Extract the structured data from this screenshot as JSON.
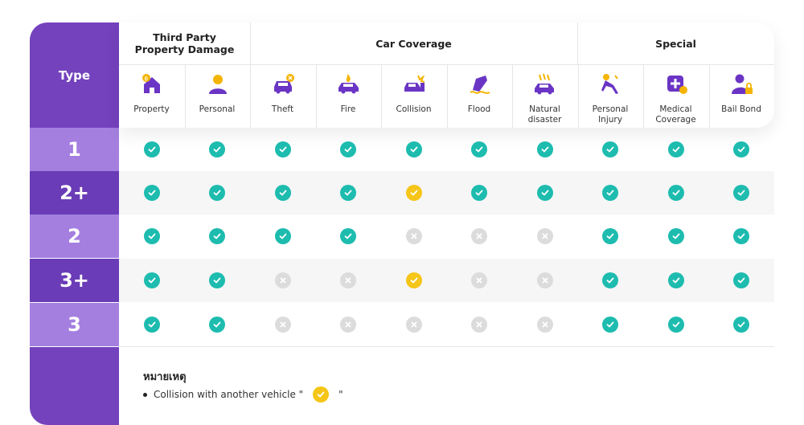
{
  "header": {
    "type_label": "Type",
    "groups": [
      {
        "title_line1": "Third Party",
        "title_line2": "Property Damage"
      },
      {
        "title_line1": "Car Coverage",
        "title_line2": ""
      },
      {
        "title_line1": "Special",
        "title_line2": ""
      }
    ],
    "columns": [
      {
        "label1": "Property",
        "label2": "",
        "icon": "house-coin-icon"
      },
      {
        "label1": "Personal",
        "label2": "",
        "icon": "person-icon"
      },
      {
        "label1": "Theft",
        "label2": "",
        "icon": "car-theft-icon"
      },
      {
        "label1": "Fire",
        "label2": "",
        "icon": "car-fire-icon"
      },
      {
        "label1": "Collision",
        "label2": "",
        "icon": "car-collision-icon"
      },
      {
        "label1": "Flood",
        "label2": "",
        "icon": "car-flood-icon"
      },
      {
        "label1": "Natural",
        "label2": "disaster",
        "icon": "car-natural-disaster-icon"
      },
      {
        "label1": "Personal",
        "label2": "Injury",
        "icon": "person-injury-icon"
      },
      {
        "label1": "Medical",
        "label2": "Coverage",
        "icon": "medical-cross-icon"
      },
      {
        "label1": "Bail Bond",
        "label2": "",
        "icon": "person-lock-icon"
      }
    ]
  },
  "rows": [
    {
      "type": "1",
      "marks": [
        "yes",
        "yes",
        "yes",
        "yes",
        "yes",
        "yes",
        "yes",
        "yes",
        "yes",
        "yes"
      ]
    },
    {
      "type": "2+",
      "marks": [
        "yes",
        "yes",
        "yes",
        "yes",
        "partial",
        "yes",
        "yes",
        "yes",
        "yes",
        "yes"
      ]
    },
    {
      "type": "2",
      "marks": [
        "yes",
        "yes",
        "yes",
        "yes",
        "no",
        "no",
        "no",
        "yes",
        "yes",
        "yes"
      ]
    },
    {
      "type": "3+",
      "marks": [
        "yes",
        "yes",
        "no",
        "no",
        "partial",
        "no",
        "no",
        "yes",
        "yes",
        "yes"
      ]
    },
    {
      "type": "3",
      "marks": [
        "yes",
        "yes",
        "no",
        "no",
        "no",
        "no",
        "no",
        "yes",
        "yes",
        "yes"
      ]
    }
  ],
  "legend": {
    "title": "หมายเหตุ",
    "text_before": "Collision with another vehicle \"",
    "text_after": "\"",
    "mark": "partial"
  },
  "colors": {
    "purple": "#7442bd",
    "purple_light": "#a47fe0",
    "teal_check": "#1dbcaf",
    "yellow_check": "#f5c518",
    "grey_cross": "#dcdcdc",
    "icon_purple": "#6a35c4",
    "icon_yellow": "#f4b400"
  }
}
